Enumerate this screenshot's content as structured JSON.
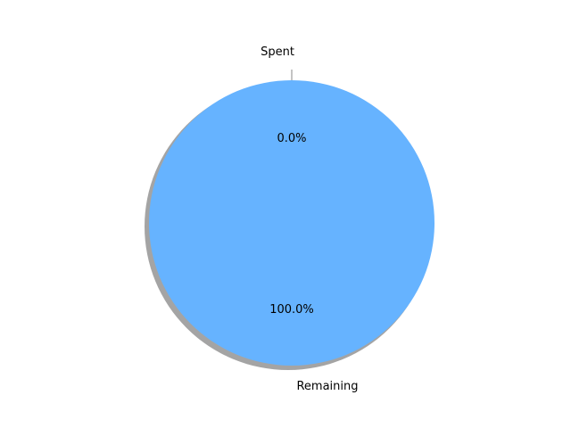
{
  "chart_data": {
    "type": "pie",
    "labels": [
      "Spent",
      "Remaining"
    ],
    "values": [
      0.0,
      100.0
    ],
    "pct_labels": [
      "0.0%",
      "100.0%"
    ],
    "colors": [
      "#ff9999",
      "#66b3ff"
    ],
    "shadow": true,
    "start_angle_deg": 90,
    "title": ""
  }
}
